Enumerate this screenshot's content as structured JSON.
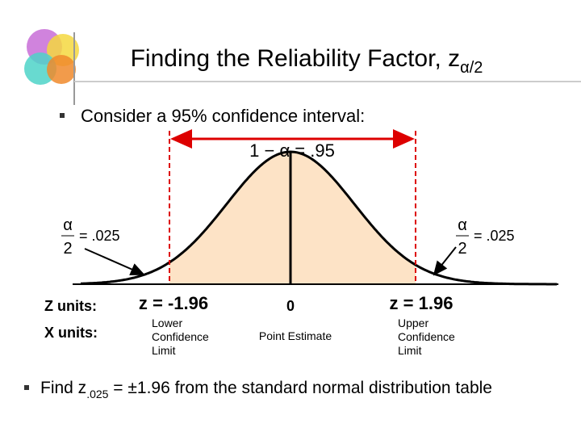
{
  "title": {
    "text": "Finding the Reliability Factor, z",
    "subscript": "α/2"
  },
  "bullets": {
    "first": "Consider a 95% confidence interval:",
    "second": {
      "prefix": "Find z",
      "subscript": ".025",
      "suffix": " = ±1.96 from the standard normal distribution table"
    }
  },
  "figure": {
    "center_label": "1 − α = .95",
    "left_tail": {
      "numerator": "α",
      "denominator": "2",
      "value": "= .025"
    },
    "right_tail": {
      "numerator": "α",
      "denominator": "2",
      "value": "= .025"
    },
    "z_units": {
      "label": "Z units:",
      "lower": "z = -1.96",
      "center": "0",
      "upper": "z = 1.96"
    },
    "x_units": {
      "label": "X units:",
      "lower": [
        "Lower",
        "Confidence",
        "Limit"
      ],
      "center": "Point Estimate",
      "upper": [
        "Upper",
        "Confidence",
        "Limit"
      ]
    }
  }
}
